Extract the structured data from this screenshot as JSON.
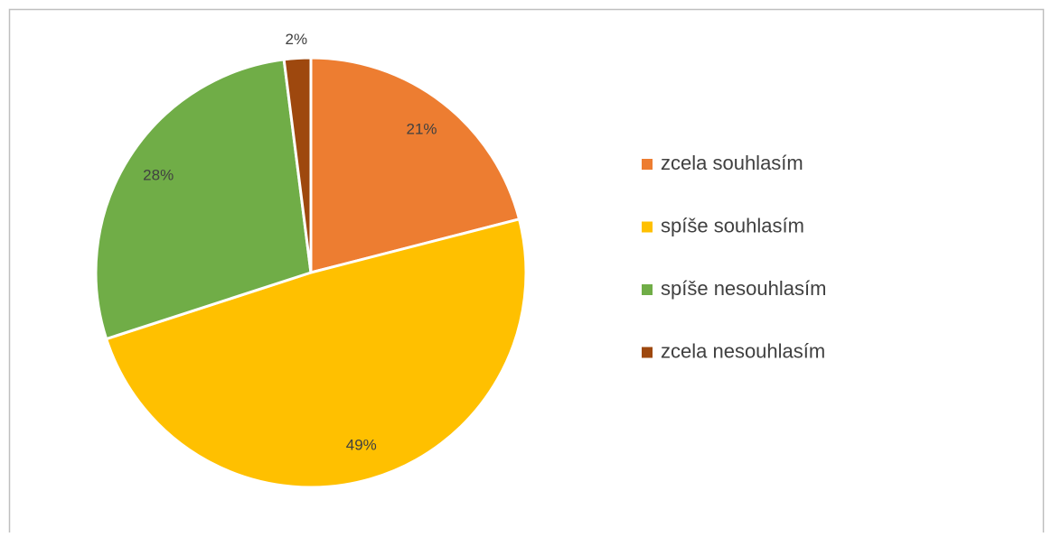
{
  "chart_data": {
    "type": "pie",
    "categories": [
      "zcela souhlasím",
      "spíše souhlasím",
      "spíše nesouhlasím",
      "zcela nesouhlasím"
    ],
    "values": [
      21,
      49,
      28,
      2
    ],
    "value_labels": [
      "21%",
      "49%",
      "28%",
      "2%"
    ],
    "colors": [
      "#ed7d31",
      "#ffc000",
      "#70ad47",
      "#9e480e"
    ],
    "legend": "right"
  }
}
